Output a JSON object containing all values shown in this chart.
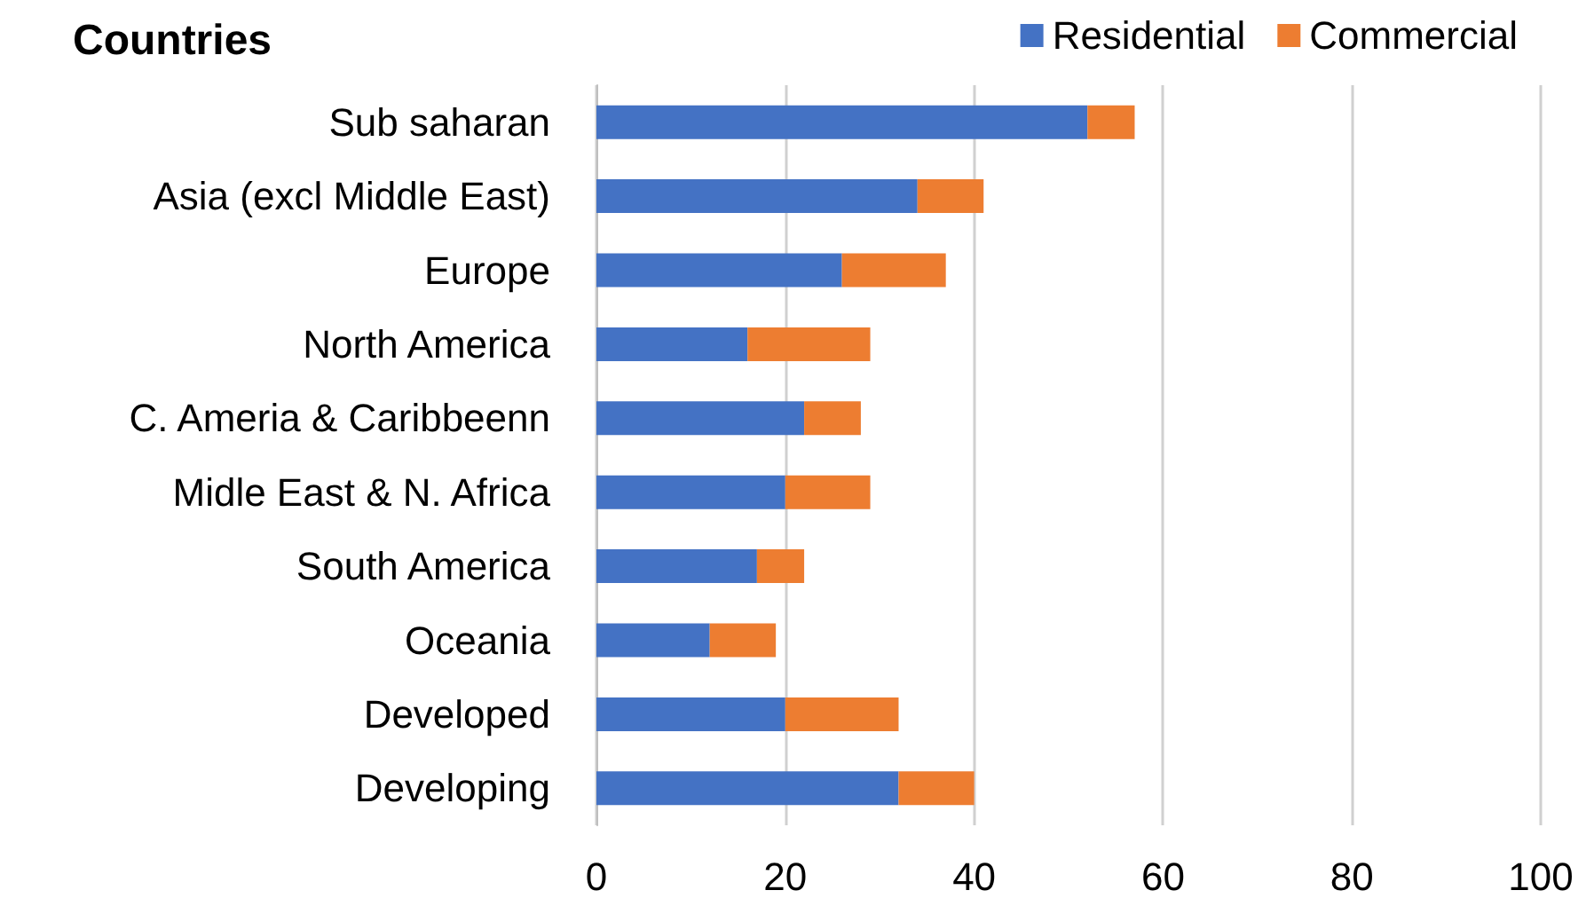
{
  "chart_data": {
    "type": "bar",
    "orientation": "horizontal",
    "stacked": true,
    "title": "Countries",
    "categories": [
      "Sub saharan",
      "Asia (excl Middle East)",
      "Europe",
      "North America",
      "C. Ameria & Caribbeenn",
      "Midle East & N. Africa",
      "South America",
      "Oceania",
      "Developed",
      "Developing"
    ],
    "series": [
      {
        "name": "Residential",
        "color": "#4472c4",
        "values": [
          52,
          34,
          26,
          16,
          22,
          20,
          17,
          12,
          20,
          32
        ]
      },
      {
        "name": "Commercial",
        "color": "#ed7d31",
        "values": [
          5,
          7,
          11,
          13,
          6,
          9,
          5,
          7,
          12,
          8
        ]
      }
    ],
    "xlim": [
      0,
      100
    ],
    "xticks": [
      0,
      20,
      40,
      60,
      80,
      100
    ],
    "grid": "x",
    "legend": "top right"
  }
}
